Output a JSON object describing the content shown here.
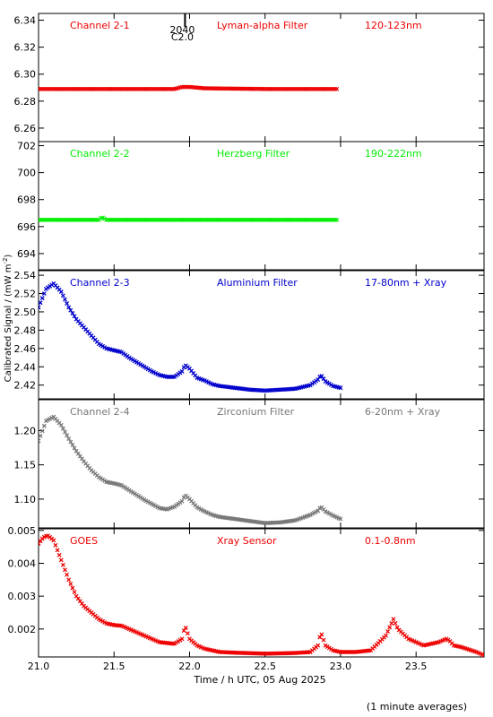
{
  "xlabel": "Time / h UTC, 05 Aug 2025",
  "ylabel_main": "Calibrated Signal / (mW m",
  "ylabel_sup": "-2",
  "ylabel_end": ")",
  "footnote": "(1 minute averages)",
  "flare_marker": {
    "x": 21.97,
    "top_label": "2040",
    "bottom_label": "C2.0"
  },
  "x_axis": {
    "xlim": [
      21.0,
      23.95
    ],
    "ticks": [
      21.0,
      21.5,
      22.0,
      22.5,
      23.0,
      23.5
    ],
    "tick_labels": [
      "21.0",
      "21.5",
      "22.0",
      "22.5",
      "23.0",
      "23.5"
    ]
  },
  "chart_data": [
    {
      "type": "scatter",
      "channel": "Channel 2-1",
      "filter": "Lyman-alpha Filter",
      "band": "120-123nm",
      "color": "#ee0000",
      "ylim": [
        6.25,
        6.345
      ],
      "yticks": [
        6.26,
        6.28,
        6.3,
        6.32,
        6.34
      ],
      "ytick_labels": [
        "6.26",
        "6.28",
        "6.30",
        "6.32",
        "6.34"
      ],
      "x": [
        21.0,
        21.5,
        21.9,
        21.95,
        22.0,
        22.1,
        22.5,
        22.98
      ],
      "y": [
        6.289,
        6.289,
        6.289,
        6.2905,
        6.2905,
        6.2895,
        6.289,
        6.289
      ]
    },
    {
      "type": "scatter",
      "channel": "Channel 2-2",
      "filter": "Herzberg Filter",
      "band": "190-222nm",
      "color": "#00ee00",
      "ylim": [
        692.8,
        702.3
      ],
      "yticks": [
        694,
        696,
        698,
        700,
        702
      ],
      "ytick_labels": [
        "694",
        "696",
        "698",
        "700",
        "702"
      ],
      "x": [
        21.0,
        21.4,
        21.42,
        21.45,
        22.0,
        22.5,
        22.98
      ],
      "y": [
        696.5,
        696.5,
        696.7,
        696.5,
        696.5,
        696.5,
        696.5
      ]
    },
    {
      "type": "scatter",
      "channel": "Channel 2-3",
      "filter": "Aluminium Filter",
      "band": "17-80nm + Xray",
      "color": "#0000cc",
      "ylim": [
        2.405,
        2.545
      ],
      "yticks": [
        2.42,
        2.44,
        2.46,
        2.48,
        2.5,
        2.52,
        2.54
      ],
      "ytick_labels": [
        "2.42",
        "2.44",
        "2.46",
        "2.48",
        "2.50",
        "2.52",
        "2.54"
      ],
      "x": [
        21.0,
        21.05,
        21.1,
        21.15,
        21.2,
        21.25,
        21.3,
        21.35,
        21.4,
        21.45,
        21.5,
        21.55,
        21.6,
        21.65,
        21.7,
        21.75,
        21.8,
        21.85,
        21.9,
        21.95,
        21.97,
        22.0,
        22.05,
        22.1,
        22.15,
        22.2,
        22.3,
        22.4,
        22.5,
        22.6,
        22.7,
        22.8,
        22.85,
        22.87,
        22.9,
        22.95,
        23.0
      ],
      "y": [
        2.505,
        2.525,
        2.531,
        2.522,
        2.505,
        2.492,
        2.483,
        2.474,
        2.465,
        2.46,
        2.458,
        2.456,
        2.45,
        2.445,
        2.44,
        2.435,
        2.431,
        2.429,
        2.429,
        2.435,
        2.442,
        2.438,
        2.428,
        2.425,
        2.421,
        2.419,
        2.417,
        2.415,
        2.414,
        2.415,
        2.416,
        2.42,
        2.426,
        2.431,
        2.424,
        2.419,
        2.417
      ]
    },
    {
      "type": "scatter",
      "channel": "Channel 2-4",
      "filter": "Zirconium Filter",
      "band": "6-20nm + Xray",
      "color": "#777777",
      "ylim": [
        1.058,
        1.245
      ],
      "yticks": [
        1.1,
        1.15,
        1.2
      ],
      "ytick_labels": [
        "1.10",
        "1.15",
        "1.20"
      ],
      "x": [
        21.0,
        21.05,
        21.1,
        21.15,
        21.2,
        21.25,
        21.3,
        21.35,
        21.4,
        21.45,
        21.5,
        21.55,
        21.6,
        21.65,
        21.7,
        21.75,
        21.8,
        21.85,
        21.9,
        21.95,
        21.97,
        22.0,
        22.05,
        22.1,
        22.15,
        22.2,
        22.3,
        22.4,
        22.5,
        22.6,
        22.7,
        22.8,
        22.85,
        22.87,
        22.9,
        22.95,
        23.0
      ],
      "y": [
        1.185,
        1.214,
        1.22,
        1.208,
        1.188,
        1.17,
        1.155,
        1.142,
        1.132,
        1.125,
        1.123,
        1.12,
        1.113,
        1.106,
        1.099,
        1.093,
        1.087,
        1.085,
        1.089,
        1.097,
        1.106,
        1.1,
        1.088,
        1.082,
        1.077,
        1.074,
        1.071,
        1.068,
        1.065,
        1.066,
        1.069,
        1.077,
        1.083,
        1.089,
        1.082,
        1.076,
        1.071
      ]
    },
    {
      "type": "scatter",
      "channel": "GOES",
      "filter": "Xray Sensor",
      "band": "0.1-0.8nm",
      "color": "#ee0000",
      "ylim": [
        0.00115,
        0.00505
      ],
      "yticks": [
        0.002,
        0.003,
        0.004,
        0.005
      ],
      "ytick_labels": [
        "0.002",
        "0.003",
        "0.004",
        "0.005"
      ],
      "x": [
        21.0,
        21.03,
        21.06,
        21.1,
        21.15,
        21.2,
        21.25,
        21.3,
        21.35,
        21.4,
        21.45,
        21.5,
        21.55,
        21.6,
        21.7,
        21.8,
        21.9,
        21.95,
        21.97,
        22.0,
        22.05,
        22.1,
        22.2,
        22.3,
        22.5,
        22.7,
        22.8,
        22.85,
        22.87,
        22.9,
        22.95,
        23.0,
        23.1,
        23.2,
        23.3,
        23.35,
        23.38,
        23.45,
        23.55,
        23.65,
        23.7,
        23.72,
        23.75,
        23.8,
        23.9,
        23.95
      ],
      "y": [
        0.0046,
        0.00478,
        0.00485,
        0.0047,
        0.0041,
        0.0035,
        0.003,
        0.0027,
        0.0025,
        0.0023,
        0.00217,
        0.00212,
        0.0021,
        0.002,
        0.0018,
        0.0016,
        0.00155,
        0.0017,
        0.0021,
        0.0017,
        0.0015,
        0.0014,
        0.0013,
        0.00128,
        0.00125,
        0.00127,
        0.0013,
        0.0015,
        0.0019,
        0.0015,
        0.00135,
        0.0013,
        0.0013,
        0.00135,
        0.0018,
        0.0023,
        0.002,
        0.0017,
        0.0015,
        0.0016,
        0.0017,
        0.00165,
        0.0015,
        0.00145,
        0.0013,
        0.0012
      ]
    }
  ]
}
